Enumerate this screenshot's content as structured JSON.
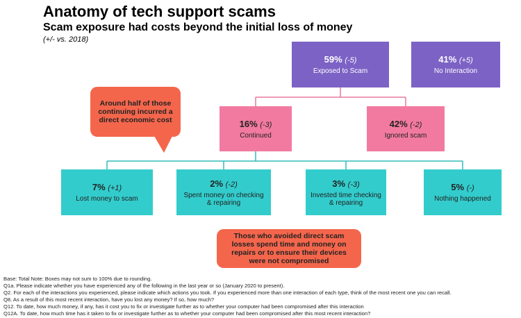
{
  "header": {
    "title": "Anatomy of tech support scams",
    "subtitle": "Scam exposure had costs beyond the initial loss of money",
    "note": "(+/- vs. 2018)"
  },
  "nodes": [
    {
      "pct": "59%",
      "change": "(-5)",
      "label": "Exposed to Scam"
    },
    {
      "pct": "41%",
      "change": "(+5)",
      "label": "No Interaction"
    },
    {
      "pct": "16%",
      "change": "(-3)",
      "label": "Continued"
    },
    {
      "pct": "42%",
      "change": "(-2)",
      "label": "Ignored scam"
    },
    {
      "pct": "7%",
      "change": "(+1)",
      "label": "Lost money to scam"
    },
    {
      "pct": "2%",
      "change": "(-2)",
      "label": "Spent money on checking & repairing"
    },
    {
      "pct": "3%",
      "change": "(-3)",
      "label": "Invested time checking & repairing"
    },
    {
      "pct": "5%",
      "change": "(-)",
      "label": "Nothing happened"
    }
  ],
  "callouts": [
    "Around half of those continuing incurred a direct economic cost",
    "Those who avoided direct scam losses spend time and money on repairs or to ensure their devices were not compromised"
  ],
  "footnotes": [
    "Base: Total Note: Boxes may not sum to 100% due to rounding.",
    "Q1a. Please indicate whether you have experienced any of the following in the last year or so (January 2020 to present).",
    "Q2. For each of the interactions you experienced, please indicate which actions you took. If you experienced more than one interaction of each type, think of the most recent one you can recall.",
    "Q8. As a result of this most recent interaction, have you lost any money? If so, how much?",
    "Q12. To date, how much money, if any, has it cost you to fix or investigate further as to whether your computer had been compromised after this interaction",
    "Q12A. To date, how much time has it taken to fix or investigate further as to whether your computer had been compromised after this most recent interaction?"
  ]
}
